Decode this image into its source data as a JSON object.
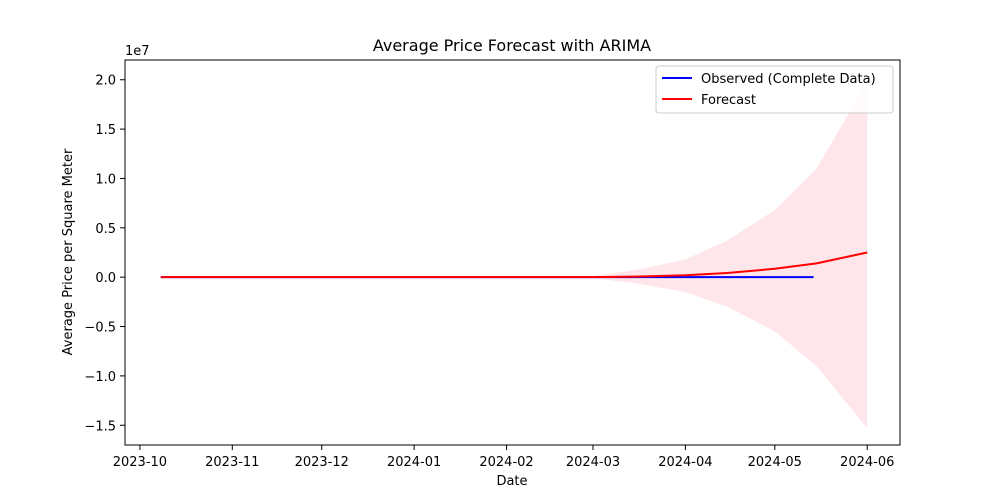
{
  "chart_data": {
    "type": "line",
    "title": "Average Price Forecast with ARIMA",
    "xlabel": "Date",
    "ylabel": "Average Price per Square Meter",
    "y_offset_label": "1e7",
    "y_scale_multiplier": 10000000,
    "xlim": [
      "2023-09-26",
      "2024-06-12"
    ],
    "ylim": [
      -17000000,
      22000000
    ],
    "x_ticks": [
      {
        "date": "2023-10-01",
        "label": "2023-10"
      },
      {
        "date": "2023-11-01",
        "label": "2023-11"
      },
      {
        "date": "2023-12-01",
        "label": "2023-12"
      },
      {
        "date": "2024-01-01",
        "label": "2024-01"
      },
      {
        "date": "2024-02-01",
        "label": "2024-02"
      },
      {
        "date": "2024-03-01",
        "label": "2024-03"
      },
      {
        "date": "2024-04-01",
        "label": "2024-04"
      },
      {
        "date": "2024-05-01",
        "label": "2024-05"
      },
      {
        "date": "2024-06-01",
        "label": "2024-06"
      }
    ],
    "y_ticks": [
      {
        "value": -15000000,
        "label": "−1.5"
      },
      {
        "value": -10000000,
        "label": "−1.0"
      },
      {
        "value": -5000000,
        "label": "−0.5"
      },
      {
        "value": 0,
        "label": "0.0"
      },
      {
        "value": 5000000,
        "label": "0.5"
      },
      {
        "value": 10000000,
        "label": "1.0"
      },
      {
        "value": 15000000,
        "label": "1.5"
      },
      {
        "value": 20000000,
        "label": "2.0"
      }
    ],
    "grid": false,
    "legend_position": "top-right",
    "series": [
      {
        "name": "Observed (Complete Data)",
        "color": "#0000ff",
        "x": [
          "2023-10-08",
          "2023-11-15",
          "2024-01-01",
          "2024-02-15",
          "2024-04-01",
          "2024-05-14"
        ],
        "y": [
          0,
          0,
          0,
          0,
          0,
          0
        ]
      },
      {
        "name": "Forecast",
        "color": "#ff0000",
        "x": [
          "2023-10-08",
          "2024-01-01",
          "2024-03-01",
          "2024-03-15",
          "2024-04-01",
          "2024-04-15",
          "2024-05-01",
          "2024-05-15",
          "2024-06-01"
        ],
        "y": [
          0,
          0,
          0,
          60000,
          200000,
          420000,
          850000,
          1400000,
          2500000
        ]
      }
    ],
    "confidence_band": {
      "color": "#ffc0cb",
      "opacity": 0.4,
      "x": [
        "2023-10-08",
        "2024-01-01",
        "2024-03-01",
        "2024-03-15",
        "2024-04-01",
        "2024-04-15",
        "2024-05-01",
        "2024-05-15",
        "2024-06-01"
      ],
      "upper": [
        0,
        0,
        100000,
        700000,
        1800000,
        3700000,
        6800000,
        11000000,
        19800000
      ],
      "lower": [
        0,
        0,
        -100000,
        -600000,
        -1500000,
        -3000000,
        -5500000,
        -9000000,
        -15300000
      ]
    }
  }
}
